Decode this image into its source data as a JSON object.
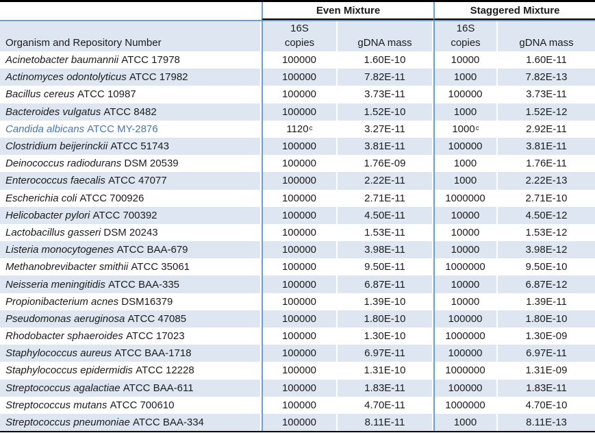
{
  "table": {
    "column_groups": [
      {
        "label": "Even Mixture"
      },
      {
        "label": "Staggered Mixture"
      }
    ],
    "headers": {
      "organism": "Organism and Repository Number",
      "copies_line1": "16S",
      "copies_line2": "copies",
      "gdna": "gDNA mass"
    },
    "rows": [
      {
        "name": "Acinetobacter baumannii",
        "repository": "ATCC 17978",
        "even": {
          "copies": "100000",
          "copies_sup": "",
          "gdna_mass": "1.60E-10"
        },
        "staggered": {
          "copies": "10000",
          "copies_sup": "",
          "gdna_mass": "1.60E-11"
        },
        "highlighted": false
      },
      {
        "name": "Actinomyces odontolyticus",
        "repository": "ATCC 17982",
        "even": {
          "copies": "100000",
          "copies_sup": "",
          "gdna_mass": "7.82E-11"
        },
        "staggered": {
          "copies": "1000",
          "copies_sup": "",
          "gdna_mass": "7.82E-13"
        },
        "highlighted": false
      },
      {
        "name": "Bacillus cereus",
        "repository": "ATCC 10987",
        "even": {
          "copies": "100000",
          "copies_sup": "",
          "gdna_mass": "3.73E-11"
        },
        "staggered": {
          "copies": "100000",
          "copies_sup": "",
          "gdna_mass": "3.73E-11"
        },
        "highlighted": false
      },
      {
        "name": "Bacteroides vulgatus",
        "repository": "ATCC 8482",
        "even": {
          "copies": "100000",
          "copies_sup": "",
          "gdna_mass": "1.52E-10"
        },
        "staggered": {
          "copies": "1000",
          "copies_sup": "",
          "gdna_mass": "1.52E-12"
        },
        "highlighted": false
      },
      {
        "name": "Candida albicans",
        "repository": "ATCC MY-2876",
        "even": {
          "copies": "1120",
          "copies_sup": "c",
          "gdna_mass": "3.27E-11"
        },
        "staggered": {
          "copies": "1000",
          "copies_sup": "c",
          "gdna_mass": "2.92E-11"
        },
        "highlighted": true
      },
      {
        "name": "Clostridium beijerinckii",
        "repository": "ATCC 51743",
        "even": {
          "copies": "100000",
          "copies_sup": "",
          "gdna_mass": "3.81E-11"
        },
        "staggered": {
          "copies": "100000",
          "copies_sup": "",
          "gdna_mass": "3.81E-11"
        },
        "highlighted": false
      },
      {
        "name": "Deinococcus radiodurans",
        "repository": "DSM 20539",
        "even": {
          "copies": "100000",
          "copies_sup": "",
          "gdna_mass": "1.76E-09"
        },
        "staggered": {
          "copies": "1000",
          "copies_sup": "",
          "gdna_mass": "1.76E-11"
        },
        "highlighted": false
      },
      {
        "name": "Enterococcus faecalis",
        "repository": "ATCC 47077",
        "even": {
          "copies": "100000",
          "copies_sup": "",
          "gdna_mass": "2.22E-11"
        },
        "staggered": {
          "copies": "1000",
          "copies_sup": "",
          "gdna_mass": "2.22E-13"
        },
        "highlighted": false
      },
      {
        "name": "Escherichia coli",
        "repository": "ATCC 700926",
        "even": {
          "copies": "100000",
          "copies_sup": "",
          "gdna_mass": "2.71E-11"
        },
        "staggered": {
          "copies": "1000000",
          "copies_sup": "",
          "gdna_mass": "2.71E-10"
        },
        "highlighted": false
      },
      {
        "name": "Helicobacter pylori",
        "repository": "ATCC 700392",
        "even": {
          "copies": "100000",
          "copies_sup": "",
          "gdna_mass": "4.50E-11"
        },
        "staggered": {
          "copies": "10000",
          "copies_sup": "",
          "gdna_mass": "4.50E-12"
        },
        "highlighted": false
      },
      {
        "name": "Lactobacillus gasseri",
        "repository": "DSM 20243",
        "even": {
          "copies": "100000",
          "copies_sup": "",
          "gdna_mass": "1.53E-11"
        },
        "staggered": {
          "copies": "10000",
          "copies_sup": "",
          "gdna_mass": "1.53E-12"
        },
        "highlighted": false
      },
      {
        "name": "Listeria monocytogenes",
        "repository": "ATCC BAA-679",
        "even": {
          "copies": "100000",
          "copies_sup": "",
          "gdna_mass": "3.98E-11"
        },
        "staggered": {
          "copies": "10000",
          "copies_sup": "",
          "gdna_mass": "3.98E-12"
        },
        "highlighted": false
      },
      {
        "name": "Methanobrevibacter smithii",
        "repository": "ATCC 35061",
        "even": {
          "copies": "100000",
          "copies_sup": "",
          "gdna_mass": "9.50E-11"
        },
        "staggered": {
          "copies": "1000000",
          "copies_sup": "",
          "gdna_mass": "9.50E-10"
        },
        "highlighted": false
      },
      {
        "name": "Neisseria meningitidis",
        "repository": "ATCC BAA-335",
        "even": {
          "copies": "100000",
          "copies_sup": "",
          "gdna_mass": "6.87E-11"
        },
        "staggered": {
          "copies": "10000",
          "copies_sup": "",
          "gdna_mass": "6.87E-12"
        },
        "highlighted": false
      },
      {
        "name": "Propionibacterium acnes",
        "repository": "DSM16379",
        "even": {
          "copies": "100000",
          "copies_sup": "",
          "gdna_mass": "1.39E-10"
        },
        "staggered": {
          "copies": "10000",
          "copies_sup": "",
          "gdna_mass": "1.39E-11"
        },
        "highlighted": false
      },
      {
        "name": "Pseudomonas aeruginosa",
        "repository": "ATCC 47085",
        "even": {
          "copies": "100000",
          "copies_sup": "",
          "gdna_mass": "1.80E-10"
        },
        "staggered": {
          "copies": "100000",
          "copies_sup": "",
          "gdna_mass": "1.80E-10"
        },
        "highlighted": false
      },
      {
        "name": "Rhodobacter sphaeroides",
        "repository": "ATCC 17023",
        "even": {
          "copies": "100000",
          "copies_sup": "",
          "gdna_mass": "1.30E-10"
        },
        "staggered": {
          "copies": "1000000",
          "copies_sup": "",
          "gdna_mass": "1.30E-09"
        },
        "highlighted": false
      },
      {
        "name": "Staphylococcus aureus",
        "repository": "ATCC BAA-1718",
        "even": {
          "copies": "100000",
          "copies_sup": "",
          "gdna_mass": "6.97E-11"
        },
        "staggered": {
          "copies": "100000",
          "copies_sup": "",
          "gdna_mass": "6.97E-11"
        },
        "highlighted": false
      },
      {
        "name": "Staphylococcus epidermidis",
        "repository": "ATCC 12228",
        "even": {
          "copies": "100000",
          "copies_sup": "",
          "gdna_mass": "1.31E-10"
        },
        "staggered": {
          "copies": "1000000",
          "copies_sup": "",
          "gdna_mass": "1.31E-09"
        },
        "highlighted": false
      },
      {
        "name": "Streptococcus agalactiae",
        "repository": "ATCC BAA-611",
        "even": {
          "copies": "100000",
          "copies_sup": "",
          "gdna_mass": "1.83E-11"
        },
        "staggered": {
          "copies": "100000",
          "copies_sup": "",
          "gdna_mass": "1.83E-11"
        },
        "highlighted": false
      },
      {
        "name": "Streptococcus mutans",
        "repository": "ATCC 700610",
        "even": {
          "copies": "100000",
          "copies_sup": "",
          "gdna_mass": "4.70E-11"
        },
        "staggered": {
          "copies": "1000000",
          "copies_sup": "",
          "gdna_mass": "4.70E-10"
        },
        "highlighted": false
      },
      {
        "name": "Streptococcus pneumoniae",
        "repository": "ATCC BAA-334",
        "even": {
          "copies": "100000",
          "copies_sup": "",
          "gdna_mass": "8.11E-11"
        },
        "staggered": {
          "copies": "1000",
          "copies_sup": "",
          "gdna_mass": "8.11E-13"
        },
        "highlighted": false
      }
    ]
  },
  "colors": {
    "band_blue": "#dee7f1",
    "separator_blue": "#6d9cd0",
    "highlight_text_blue": "#4576b5",
    "border_black": "#000000",
    "body_text": "#1b1b1b"
  }
}
